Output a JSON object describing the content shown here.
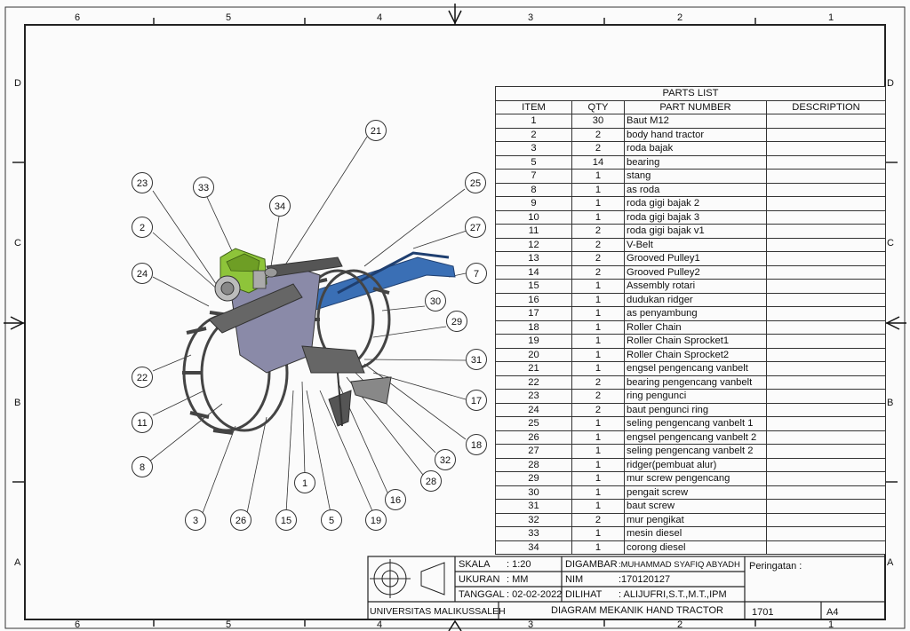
{
  "border_zones": {
    "columns": [
      "6",
      "5",
      "4",
      "3",
      "2",
      "1"
    ],
    "rows": [
      "D",
      "C",
      "B",
      "A"
    ]
  },
  "parts_list": {
    "title": "PARTS LIST",
    "headers": [
      "ITEM",
      "QTY",
      "PART NUMBER",
      "DESCRIPTION"
    ],
    "rows": [
      [
        "1",
        "30",
        "Baut M12",
        ""
      ],
      [
        "2",
        "2",
        "body hand tractor",
        ""
      ],
      [
        "3",
        "2",
        "roda bajak",
        ""
      ],
      [
        "5",
        "14",
        "bearing",
        ""
      ],
      [
        "7",
        "1",
        "stang",
        ""
      ],
      [
        "8",
        "1",
        "as roda",
        ""
      ],
      [
        "9",
        "1",
        "roda gigi bajak 2",
        ""
      ],
      [
        "10",
        "1",
        "roda gigi bajak 3",
        ""
      ],
      [
        "11",
        "2",
        "roda gigi bajak v1",
        ""
      ],
      [
        "12",
        "2",
        "V-Belt",
        ""
      ],
      [
        "13",
        "2",
        "Grooved Pulley1",
        ""
      ],
      [
        "14",
        "2",
        "Grooved Pulley2",
        ""
      ],
      [
        "15",
        "1",
        "Assembly rotari",
        ""
      ],
      [
        "16",
        "1",
        "dudukan ridger",
        ""
      ],
      [
        "17",
        "1",
        "as penyambung",
        ""
      ],
      [
        "18",
        "1",
        "Roller Chain",
        ""
      ],
      [
        "19",
        "1",
        "Roller Chain Sprocket1",
        ""
      ],
      [
        "20",
        "1",
        "Roller Chain Sprocket2",
        ""
      ],
      [
        "21",
        "1",
        "engsel pengencang vanbelt",
        ""
      ],
      [
        "22",
        "2",
        "bearing pengencang vanbelt",
        ""
      ],
      [
        "23",
        "2",
        "ring pengunci",
        ""
      ],
      [
        "24",
        "2",
        "baut pengunci ring",
        ""
      ],
      [
        "25",
        "1",
        "seling pengencang vanbelt 1",
        ""
      ],
      [
        "26",
        "1",
        "engsel  pengencang vanbelt 2",
        ""
      ],
      [
        "27",
        "1",
        "seling pengencang vanbelt 2",
        ""
      ],
      [
        "28",
        "1",
        "ridger(pembuat alur)",
        ""
      ],
      [
        "29",
        "1",
        "mur screw pengencang",
        ""
      ],
      [
        "30",
        "1",
        "pengait screw",
        ""
      ],
      [
        "31",
        "1",
        "baut screw",
        ""
      ],
      [
        "32",
        "2",
        "mur pengikat",
        ""
      ],
      [
        "33",
        "1",
        "mesin diesel",
        ""
      ],
      [
        "34",
        "1",
        "corong diesel",
        ""
      ]
    ]
  },
  "balloons": [
    "21",
    "23",
    "33",
    "34",
    "25",
    "2",
    "27",
    "24",
    "7",
    "30",
    "29",
    "22",
    "31",
    "11",
    "17",
    "8",
    "18",
    "32",
    "28",
    "1",
    "16",
    "3",
    "26",
    "15",
    "5",
    "19"
  ],
  "title_block": {
    "skala_label": "SKALA",
    "skala_value": ": 1:20",
    "ukuran_label": "UKURAN",
    "ukuran_value": ": MM",
    "tanggal_label": "TANGGAL",
    "tanggal_value": ": 02-02-2022",
    "digambar_label": "DIGAMBAR",
    "digambar_value": ":MUHAMMAD SYAFIQ ABYADH",
    "nim_label": "NIM",
    "nim_value": ":170120127",
    "dilihat_label": "DILIHAT",
    "dilihat_value": ": ALIJUFRI,S.T.,M.T.,IPM",
    "peringatan": "Peringatan :",
    "institution": "UNIVERSITAS MALIKUSSALEH",
    "drawing_title": "DIAGRAM MEKANIK HAND TRACTOR",
    "number": "1701",
    "size": "A4"
  },
  "colors": {
    "engine": "#8ec43a",
    "handle": "#3a6fb5",
    "frame": "#555555",
    "line": "#222222"
  }
}
